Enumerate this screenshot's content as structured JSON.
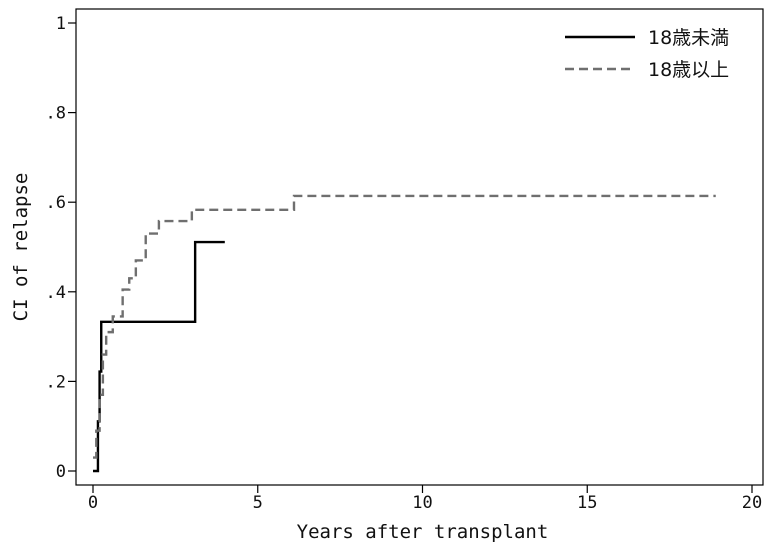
{
  "chart_data": {
    "type": "line",
    "title": "",
    "xlabel": "Years after transplant",
    "ylabel": "CI of relapse",
    "xlim": [
      0,
      20
    ],
    "ylim": [
      0,
      1
    ],
    "x_ticks": [
      0,
      5,
      10,
      15,
      20
    ],
    "x_tick_labels": [
      "0",
      "5",
      "10",
      "15",
      "20"
    ],
    "y_ticks": [
      0,
      0.2,
      0.4,
      0.6,
      0.8,
      1
    ],
    "y_tick_labels": [
      "0",
      ".2",
      ".4",
      ".6",
      ".8",
      "1"
    ],
    "grid": false,
    "legend_position": "top-right",
    "series": [
      {
        "name": "18歳未満",
        "style": "solid",
        "color": "#000000",
        "step": true,
        "x": [
          0,
          0.15,
          0.2,
          0.25,
          3.1,
          4.0
        ],
        "y": [
          0,
          0.111,
          0.222,
          0.333,
          0.511,
          0.511
        ]
      },
      {
        "name": "18歳以上",
        "style": "dashed",
        "color": "#6f6f6f",
        "step": true,
        "x": [
          0,
          0.1,
          0.2,
          0.3,
          0.4,
          0.6,
          0.9,
          1.1,
          1.3,
          1.6,
          2.0,
          3.0,
          6.1,
          18.9
        ],
        "y": [
          0.03,
          0.09,
          0.17,
          0.26,
          0.31,
          0.345,
          0.405,
          0.43,
          0.47,
          0.53,
          0.558,
          0.583,
          0.614,
          0.614
        ]
      }
    ]
  }
}
